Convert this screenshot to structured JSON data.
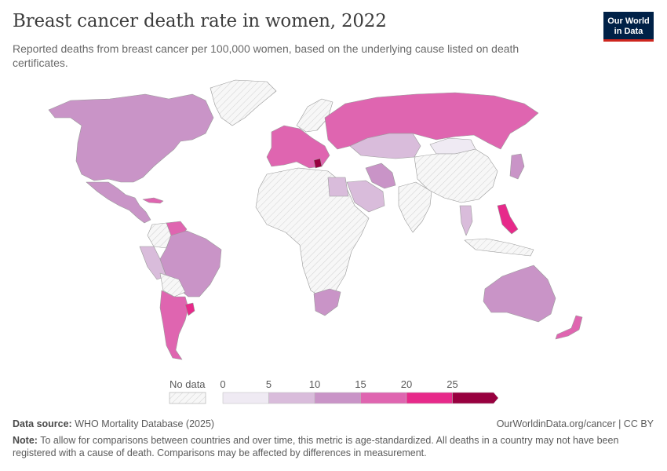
{
  "title": "Breast cancer death rate in women, 2022",
  "subtitle": "Reported deaths from breast cancer per 100,000 women, based on the underlying cause listed on death certificates.",
  "logo": {
    "line1": "Our World",
    "line2": "in Data"
  },
  "legend": {
    "no_data_label": "No data",
    "tick_labels": [
      "0",
      "5",
      "10",
      "15",
      "20",
      "25"
    ],
    "bins": [
      {
        "from": 0,
        "to": 5,
        "color": "#efeaf3"
      },
      {
        "from": 5,
        "to": 10,
        "color": "#d9bcdb"
      },
      {
        "from": 10,
        "to": 15,
        "color": "#c994c7"
      },
      {
        "from": 15,
        "to": 20,
        "color": "#df65b0"
      },
      {
        "from": 20,
        "to": 25,
        "color": "#e7298a"
      },
      {
        "from": 25,
        "to": null,
        "color": "#98003f"
      }
    ]
  },
  "colors": {
    "no_data": "#f2f2f2",
    "border": "#9a9a9a",
    "ocean": "#ffffff"
  },
  "regions": [
    {
      "name": "North America",
      "color": "#c994c7"
    },
    {
      "name": "Greenland",
      "color": "#f2f2f2"
    },
    {
      "name": "Mexico",
      "color": "#c994c7"
    },
    {
      "name": "Cuba",
      "color": "#df65b0"
    },
    {
      "name": "Venezuela",
      "color": "#df65b0"
    },
    {
      "name": "Brazil",
      "color": "#c994c7"
    },
    {
      "name": "Peru",
      "color": "#d9bcdb"
    },
    {
      "name": "Argentina",
      "color": "#df65b0"
    },
    {
      "name": "Uruguay",
      "color": "#e7298a"
    },
    {
      "name": "Western Europe",
      "color": "#df65b0"
    },
    {
      "name": "Serbia",
      "color": "#98003f"
    },
    {
      "name": "Russia",
      "color": "#df65b0"
    },
    {
      "name": "Kazakhstan",
      "color": "#d9bcdb"
    },
    {
      "name": "Mongolia",
      "color": "#efeaf3"
    },
    {
      "name": "China",
      "color": "#f2f2f2"
    },
    {
      "name": "Africa",
      "color": "#f2f2f2"
    },
    {
      "name": "Egypt",
      "color": "#d9bcdb"
    },
    {
      "name": "Saudi Arabia",
      "color": "#d9bcdb"
    },
    {
      "name": "Iran",
      "color": "#c994c7"
    },
    {
      "name": "India",
      "color": "#f2f2f2"
    },
    {
      "name": "South Africa",
      "color": "#c994c7"
    },
    {
      "name": "Philippines",
      "color": "#e7298a"
    },
    {
      "name": "Japan",
      "color": "#c994c7"
    },
    {
      "name": "Thailand",
      "color": "#d9bcdb"
    },
    {
      "name": "Australia",
      "color": "#c994c7"
    },
    {
      "name": "New Zealand",
      "color": "#df65b0"
    }
  ],
  "footer": {
    "source_label": "Data source:",
    "source_text": "WHO Mortality Database (2025)",
    "url": "OurWorldinData.org/cancer | CC BY",
    "note_label": "Note:",
    "note_text": "To allow for comparisons between countries and over time, this metric is age-standardized. All deaths in a country may not have been registered with a cause of death. Comparisons may be affected by differences in measurement."
  }
}
